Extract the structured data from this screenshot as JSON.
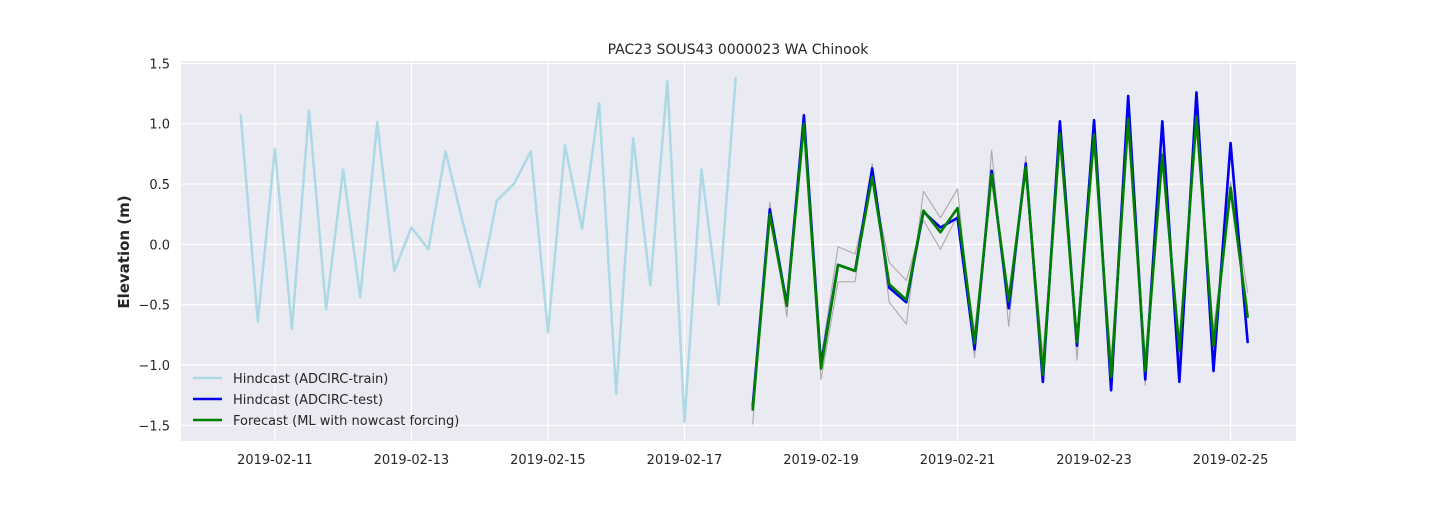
{
  "chart_data": {
    "type": "line",
    "title": "PAC23 SOUS43 0000023 WA Chinook",
    "xlabel": "",
    "ylabel": "Elevation (m)",
    "x_axis_type": "date",
    "xlim": [
      "2019-02-09T15:00",
      "2019-02-25T23:00"
    ],
    "ylim": [
      -1.63,
      1.52
    ],
    "xticks": [
      "2019-02-11",
      "2019-02-13",
      "2019-02-15",
      "2019-02-17",
      "2019-02-19",
      "2019-02-21",
      "2019-02-23",
      "2019-02-25"
    ],
    "yticks": [
      "1.5",
      "1.0",
      "0.5",
      "0.0",
      "−0.5",
      "−1.0",
      "−1.5"
    ],
    "ytick_values": [
      1.5,
      1.0,
      0.5,
      0.0,
      -0.5,
      -1.0,
      -1.5
    ],
    "grid": true,
    "legend_position": "lower-left",
    "series": [
      {
        "name": "Hindcast (ADCIRC-train)",
        "color": "#add8e6",
        "in_legend": true,
        "x": [
          "2019-02-10T12:00",
          "2019-02-10T18:00",
          "2019-02-11T00:00",
          "2019-02-11T06:00",
          "2019-02-11T12:00",
          "2019-02-11T18:00",
          "2019-02-12T00:00",
          "2019-02-12T06:00",
          "2019-02-12T12:00",
          "2019-02-12T18:00",
          "2019-02-13T00:00",
          "2019-02-13T06:00",
          "2019-02-13T12:00",
          "2019-02-13T18:00",
          "2019-02-14T00:00",
          "2019-02-14T06:00",
          "2019-02-14T12:00",
          "2019-02-14T18:00",
          "2019-02-15T00:00",
          "2019-02-15T06:00",
          "2019-02-15T12:00",
          "2019-02-15T18:00",
          "2019-02-16T00:00",
          "2019-02-16T06:00",
          "2019-02-16T12:00",
          "2019-02-16T18:00",
          "2019-02-17T00:00",
          "2019-02-17T06:00",
          "2019-02-17T12:00",
          "2019-02-17T18:00"
        ],
        "y": [
          1.07,
          -0.64,
          0.79,
          -0.7,
          1.11,
          -0.54,
          0.62,
          -0.44,
          1.01,
          -0.22,
          0.14,
          -0.04,
          0.77,
          0.19,
          -0.35,
          0.36,
          0.5,
          0.77,
          -0.73,
          0.82,
          0.13,
          1.17,
          -1.24,
          0.88,
          -0.34,
          1.35,
          -1.47,
          0.62,
          -0.5,
          1.38
        ]
      },
      {
        "name": "ML ensemble (background)",
        "color": "#aaaaaa",
        "in_legend": false,
        "x": [
          "2019-02-18T00:00",
          "2019-02-18T06:00",
          "2019-02-18T12:00",
          "2019-02-18T18:00",
          "2019-02-19T00:00",
          "2019-02-19T06:00",
          "2019-02-19T12:00",
          "2019-02-19T18:00",
          "2019-02-20T00:00",
          "2019-02-20T06:00",
          "2019-02-20T12:00",
          "2019-02-20T18:00",
          "2019-02-21T00:00",
          "2019-02-21T06:00",
          "2019-02-21T12:00",
          "2019-02-21T18:00",
          "2019-02-22T00:00",
          "2019-02-22T06:00",
          "2019-02-22T12:00",
          "2019-02-22T18:00",
          "2019-02-23T00:00",
          "2019-02-23T06:00",
          "2019-02-23T12:00",
          "2019-02-23T18:00",
          "2019-02-24T00:00",
          "2019-02-24T06:00",
          "2019-02-24T12:00",
          "2019-02-24T18:00",
          "2019-02-25T00:00",
          "2019-02-25T06:00"
        ],
        "y": [
          -1.49,
          0.35,
          -0.6,
          1.08,
          -1.12,
          -0.31,
          -0.31,
          0.67,
          -0.48,
          -0.66,
          0.44,
          0.22,
          0.46,
          -0.94,
          0.78,
          -0.68,
          0.73,
          -1.1,
          0.93,
          -0.96,
          0.97,
          -1.1,
          1.1,
          -1.17,
          0.77,
          -0.95,
          1.06,
          -0.85,
          0.52,
          -0.4
        ]
      },
      {
        "name": "ML ensemble (background) 2",
        "color": "#aaaaaa",
        "in_legend": false,
        "x": [
          "2019-02-18T00:00",
          "2019-02-18T06:00",
          "2019-02-18T12:00",
          "2019-02-18T18:00",
          "2019-02-19T00:00",
          "2019-02-19T06:00",
          "2019-02-19T12:00",
          "2019-02-19T18:00",
          "2019-02-20T00:00",
          "2019-02-20T06:00",
          "2019-02-20T12:00",
          "2019-02-20T18:00",
          "2019-02-21T00:00",
          "2019-02-21T06:00",
          "2019-02-21T12:00",
          "2019-02-21T18:00",
          "2019-02-22T00:00",
          "2019-02-22T06:00",
          "2019-02-22T12:00",
          "2019-02-22T18:00",
          "2019-02-23T00:00",
          "2019-02-23T06:00",
          "2019-02-23T12:00",
          "2019-02-23T18:00",
          "2019-02-24T00:00",
          "2019-02-24T06:00",
          "2019-02-24T12:00",
          "2019-02-24T18:00",
          "2019-02-25T00:00",
          "2019-02-25T06:00"
        ],
        "y": [
          -1.3,
          0.2,
          -0.45,
          0.95,
          -0.95,
          -0.02,
          -0.08,
          0.52,
          -0.15,
          -0.3,
          0.2,
          -0.04,
          0.24,
          -0.72,
          0.52,
          -0.4,
          0.58,
          -0.92,
          0.82,
          -0.75,
          0.8,
          -0.95,
          0.92,
          -0.92,
          0.68,
          -0.78,
          0.94,
          -0.7,
          0.4,
          -0.52
        ]
      },
      {
        "name": "Hindcast (ADCIRC-test)",
        "color": "#0000ee",
        "in_legend": true,
        "x": [
          "2019-02-18T00:00",
          "2019-02-18T06:00",
          "2019-02-18T12:00",
          "2019-02-18T18:00",
          "2019-02-19T00:00",
          "2019-02-19T06:00",
          "2019-02-19T12:00",
          "2019-02-19T18:00",
          "2019-02-20T00:00",
          "2019-02-20T06:00",
          "2019-02-20T12:00",
          "2019-02-20T18:00",
          "2019-02-21T00:00",
          "2019-02-21T06:00",
          "2019-02-21T12:00",
          "2019-02-21T18:00",
          "2019-02-22T00:00",
          "2019-02-22T06:00",
          "2019-02-22T12:00",
          "2019-02-22T18:00",
          "2019-02-23T00:00",
          "2019-02-23T06:00",
          "2019-02-23T12:00",
          "2019-02-23T18:00",
          "2019-02-24T00:00",
          "2019-02-24T06:00",
          "2019-02-24T12:00",
          "2019-02-24T18:00",
          "2019-02-25T00:00",
          "2019-02-25T06:00"
        ],
        "y": [
          -1.34,
          0.29,
          -0.5,
          1.07,
          -1.0,
          -0.17,
          -0.22,
          0.63,
          -0.36,
          -0.48,
          0.27,
          0.14,
          0.22,
          -0.87,
          0.61,
          -0.53,
          0.67,
          -1.14,
          1.02,
          -0.84,
          1.03,
          -1.21,
          1.23,
          -1.12,
          1.02,
          -1.14,
          1.26,
          -1.05,
          0.84,
          -0.81
        ]
      },
      {
        "name": "Forecast (ML with nowcast forcing)",
        "color": "#008000",
        "in_legend": true,
        "x": [
          "2019-02-18T00:00",
          "2019-02-18T06:00",
          "2019-02-18T12:00",
          "2019-02-18T18:00",
          "2019-02-19T00:00",
          "2019-02-19T06:00",
          "2019-02-19T12:00",
          "2019-02-19T18:00",
          "2019-02-20T00:00",
          "2019-02-20T06:00",
          "2019-02-20T12:00",
          "2019-02-20T18:00",
          "2019-02-21T00:00",
          "2019-02-21T06:00",
          "2019-02-21T12:00",
          "2019-02-21T18:00",
          "2019-02-22T00:00",
          "2019-02-22T06:00",
          "2019-02-22T12:00",
          "2019-02-22T18:00",
          "2019-02-23T00:00",
          "2019-02-23T06:00",
          "2019-02-23T12:00",
          "2019-02-23T18:00",
          "2019-02-24T00:00",
          "2019-02-24T06:00",
          "2019-02-24T12:00",
          "2019-02-24T18:00",
          "2019-02-25T00:00",
          "2019-02-25T06:00"
        ],
        "y": [
          -1.37,
          0.25,
          -0.51,
          1.0,
          -1.03,
          -0.17,
          -0.22,
          0.56,
          -0.33,
          -0.46,
          0.28,
          0.1,
          0.3,
          -0.82,
          0.58,
          -0.47,
          0.64,
          -1.08,
          0.92,
          -0.81,
          0.91,
          -1.1,
          1.04,
          -1.05,
          0.74,
          -0.88,
          1.06,
          -0.84,
          0.47,
          -0.6
        ]
      }
    ]
  }
}
